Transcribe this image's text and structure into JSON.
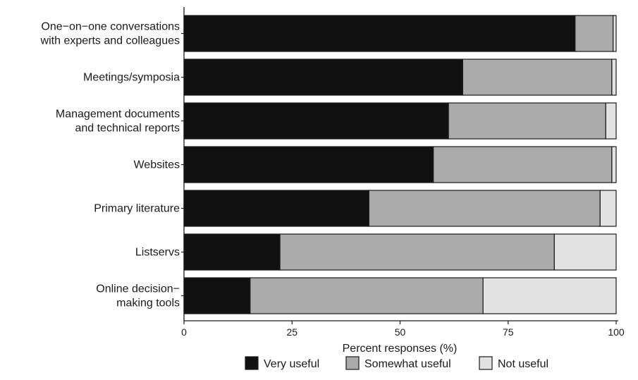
{
  "chart_data": {
    "type": "bar",
    "orientation": "horizontal",
    "stacked": true,
    "categories": [
      [
        "One−on−one conversations",
        "with experts and colleagues"
      ],
      [
        "Meetings/symposia"
      ],
      [
        "Management documents",
        "and technical reports"
      ],
      [
        "Websites"
      ],
      [
        "Primary literature"
      ],
      [
        "Listservs"
      ],
      [
        "Online decision−",
        "making tools"
      ]
    ],
    "series": [
      {
        "name": "Very useful",
        "color": "#111111",
        "values": [
          90.5,
          64.5,
          61.2,
          57.7,
          42.8,
          22.2,
          15.3
        ]
      },
      {
        "name": "Somewhat useful",
        "color": "#ababab",
        "values": [
          8.8,
          34.5,
          36.4,
          41.3,
          53.5,
          63.5,
          53.9
        ]
      },
      {
        "name": "Not useful",
        "color": "#e2e2e2",
        "values": [
          0.7,
          1.0,
          2.4,
          1.0,
          3.7,
          14.3,
          30.8
        ]
      }
    ],
    "xlim": [
      0,
      100
    ],
    "xticks": [
      0,
      25,
      50,
      75,
      100
    ],
    "xlabel": "Percent responses (%)",
    "ylabel": "",
    "title": "",
    "grid": false,
    "legend_position": "bottom"
  }
}
